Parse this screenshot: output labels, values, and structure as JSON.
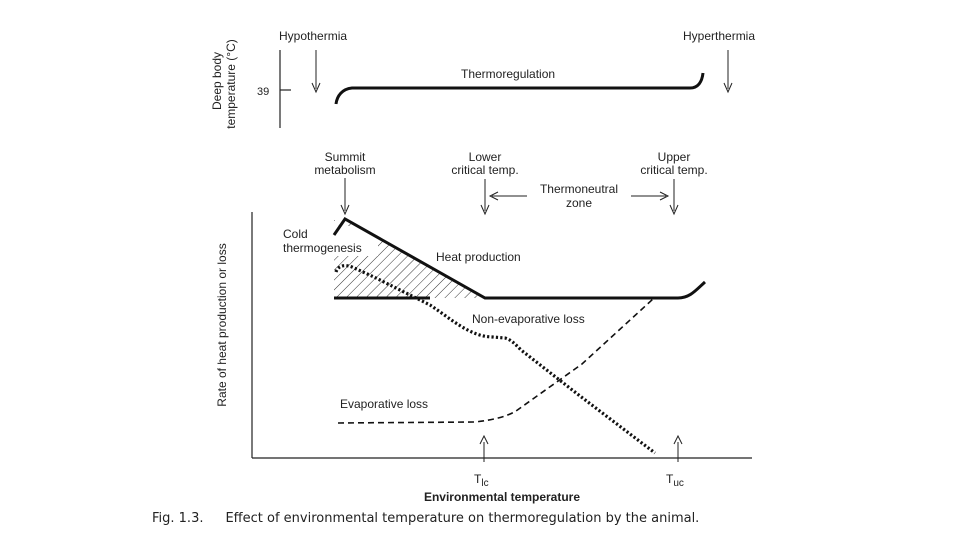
{
  "top_panel": {
    "y_axis_label_line1": "Deep body",
    "y_axis_label_line2": "temperature (°C)",
    "tick_value": "39",
    "hypothermia_label": "Hypothermia",
    "hyperthermia_label": "Hyperthermia",
    "curve_label": "Thermoregulation"
  },
  "main_panel": {
    "y_axis_label": "Rate of heat production or loss",
    "x_axis_label": "Environmental temperature",
    "summit_line1": "Summit",
    "summit_line2": "metabolism",
    "lower_line1": "Lower",
    "lower_line2": "critical temp.",
    "upper_line1": "Upper",
    "upper_line2": "critical temp.",
    "zone_line1": "Thermoneutral",
    "zone_line2": "zone",
    "cold_line1": "Cold",
    "cold_line2": "thermogenesis",
    "heat_production_label": "Heat production",
    "non_evaporative_label": "Non-evaporative loss",
    "evaporative_label": "Evaporative loss",
    "tlc_main": "T",
    "tlc_sub": "lc",
    "tuc_main": "T",
    "tuc_sub": "uc"
  },
  "caption": {
    "number": "Fig. 1.3.",
    "text": "Effect of environmental temperature on thermoregulation by the animal."
  }
}
